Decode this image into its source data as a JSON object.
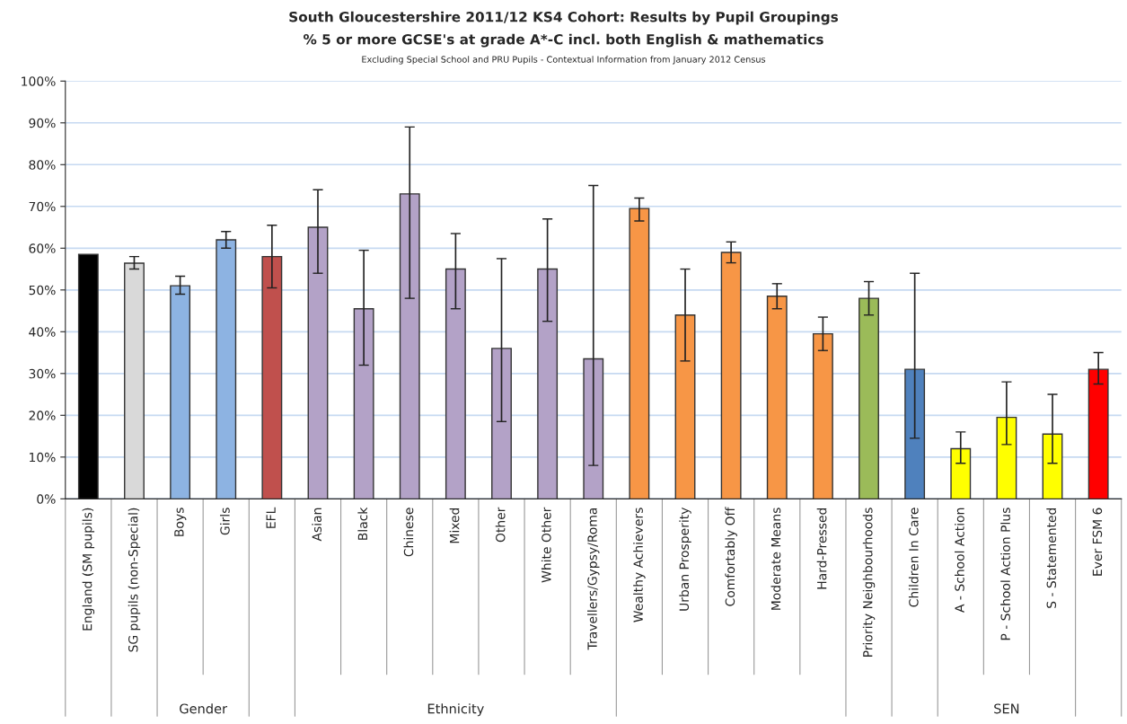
{
  "chart_data": {
    "type": "bar",
    "title": "South Gloucestershire 2011/12 KS4 Cohort: Results by Pupil Groupings",
    "subtitle": "% 5 or more GCSE's at grade A*-C incl. both English & mathematics",
    "categories": [
      "England (SM pupils)",
      "SG pupils (non-Special)",
      "Boys",
      "Girls",
      "EFL",
      "Asian",
      "Black",
      "Chinese",
      "Mixed",
      "Other",
      "White Other",
      "Travellers/Gypsy/Roma",
      "Wealthy Achievers",
      "Urban Prosperity",
      "Comfortably Off",
      "Moderate Means",
      "Hard-Pressed",
      "Priority Neighbourhoods",
      "Children In Care",
      "A - School Action",
      "P - School Action Plus",
      "S - Statemented",
      "Ever FSM 6"
    ],
    "values": [
      58.5,
      56.4,
      51,
      62,
      58,
      65,
      45.5,
      73,
      55,
      36,
      55,
      33.5,
      69.5,
      44,
      59,
      48.5,
      39.5,
      48,
      31,
      12,
      19.5,
      15.5,
      31
    ],
    "errors": [
      null,
      [
        55,
        58
      ],
      [
        49,
        53.3
      ],
      [
        60,
        64
      ],
      [
        50.5,
        65.5
      ],
      [
        54,
        74
      ],
      [
        32,
        59.5
      ],
      [
        48,
        89
      ],
      [
        45.5,
        63.5
      ],
      [
        18.5,
        57.5
      ],
      [
        42.5,
        67
      ],
      [
        8,
        75
      ],
      [
        66.5,
        72
      ],
      [
        33,
        55
      ],
      [
        56.5,
        61.5
      ],
      [
        45.5,
        51.5
      ],
      [
        35.5,
        43.5
      ],
      [
        44,
        52
      ],
      [
        14.5,
        54
      ],
      [
        8.5,
        16
      ],
      [
        13,
        28
      ],
      [
        8.5,
        25
      ],
      [
        27.5,
        35
      ]
    ],
    "colors": [
      "#000000",
      "#d9d9d9",
      "#8db3e2",
      "#8db3e2",
      "#c0504d",
      "#b3a2c7",
      "#b3a2c7",
      "#b3a2c7",
      "#b3a2c7",
      "#b3a2c7",
      "#b3a2c7",
      "#b3a2c7",
      "#f79646",
      "#f79646",
      "#f79646",
      "#f79646",
      "#f79646",
      "#9bbb59",
      "#4f81bd",
      "#ffff00",
      "#ffff00",
      "#ffff00",
      "#ff0000"
    ],
    "ylim": [
      0,
      100
    ],
    "yticks": [
      {
        "value": 0,
        "label": "0%"
      },
      {
        "value": 10,
        "label": "10%"
      },
      {
        "value": 20,
        "label": "20%"
      },
      {
        "value": 30,
        "label": "30%"
      },
      {
        "value": 40,
        "label": "40%"
      },
      {
        "value": 50,
        "label": "50%"
      },
      {
        "value": 60,
        "label": "60%"
      },
      {
        "value": 70,
        "label": "70%"
      },
      {
        "value": 80,
        "label": "80%"
      },
      {
        "value": 90,
        "label": "90%"
      },
      {
        "value": 100,
        "label": "100%"
      }
    ],
    "grid": "y",
    "legend": false,
    "annotations": [
      "Excluding Special School and PRU Pupils - Contextual Information from January 2012 Census",
      "Gender",
      "Ethnicity",
      "SEN"
    ]
  }
}
